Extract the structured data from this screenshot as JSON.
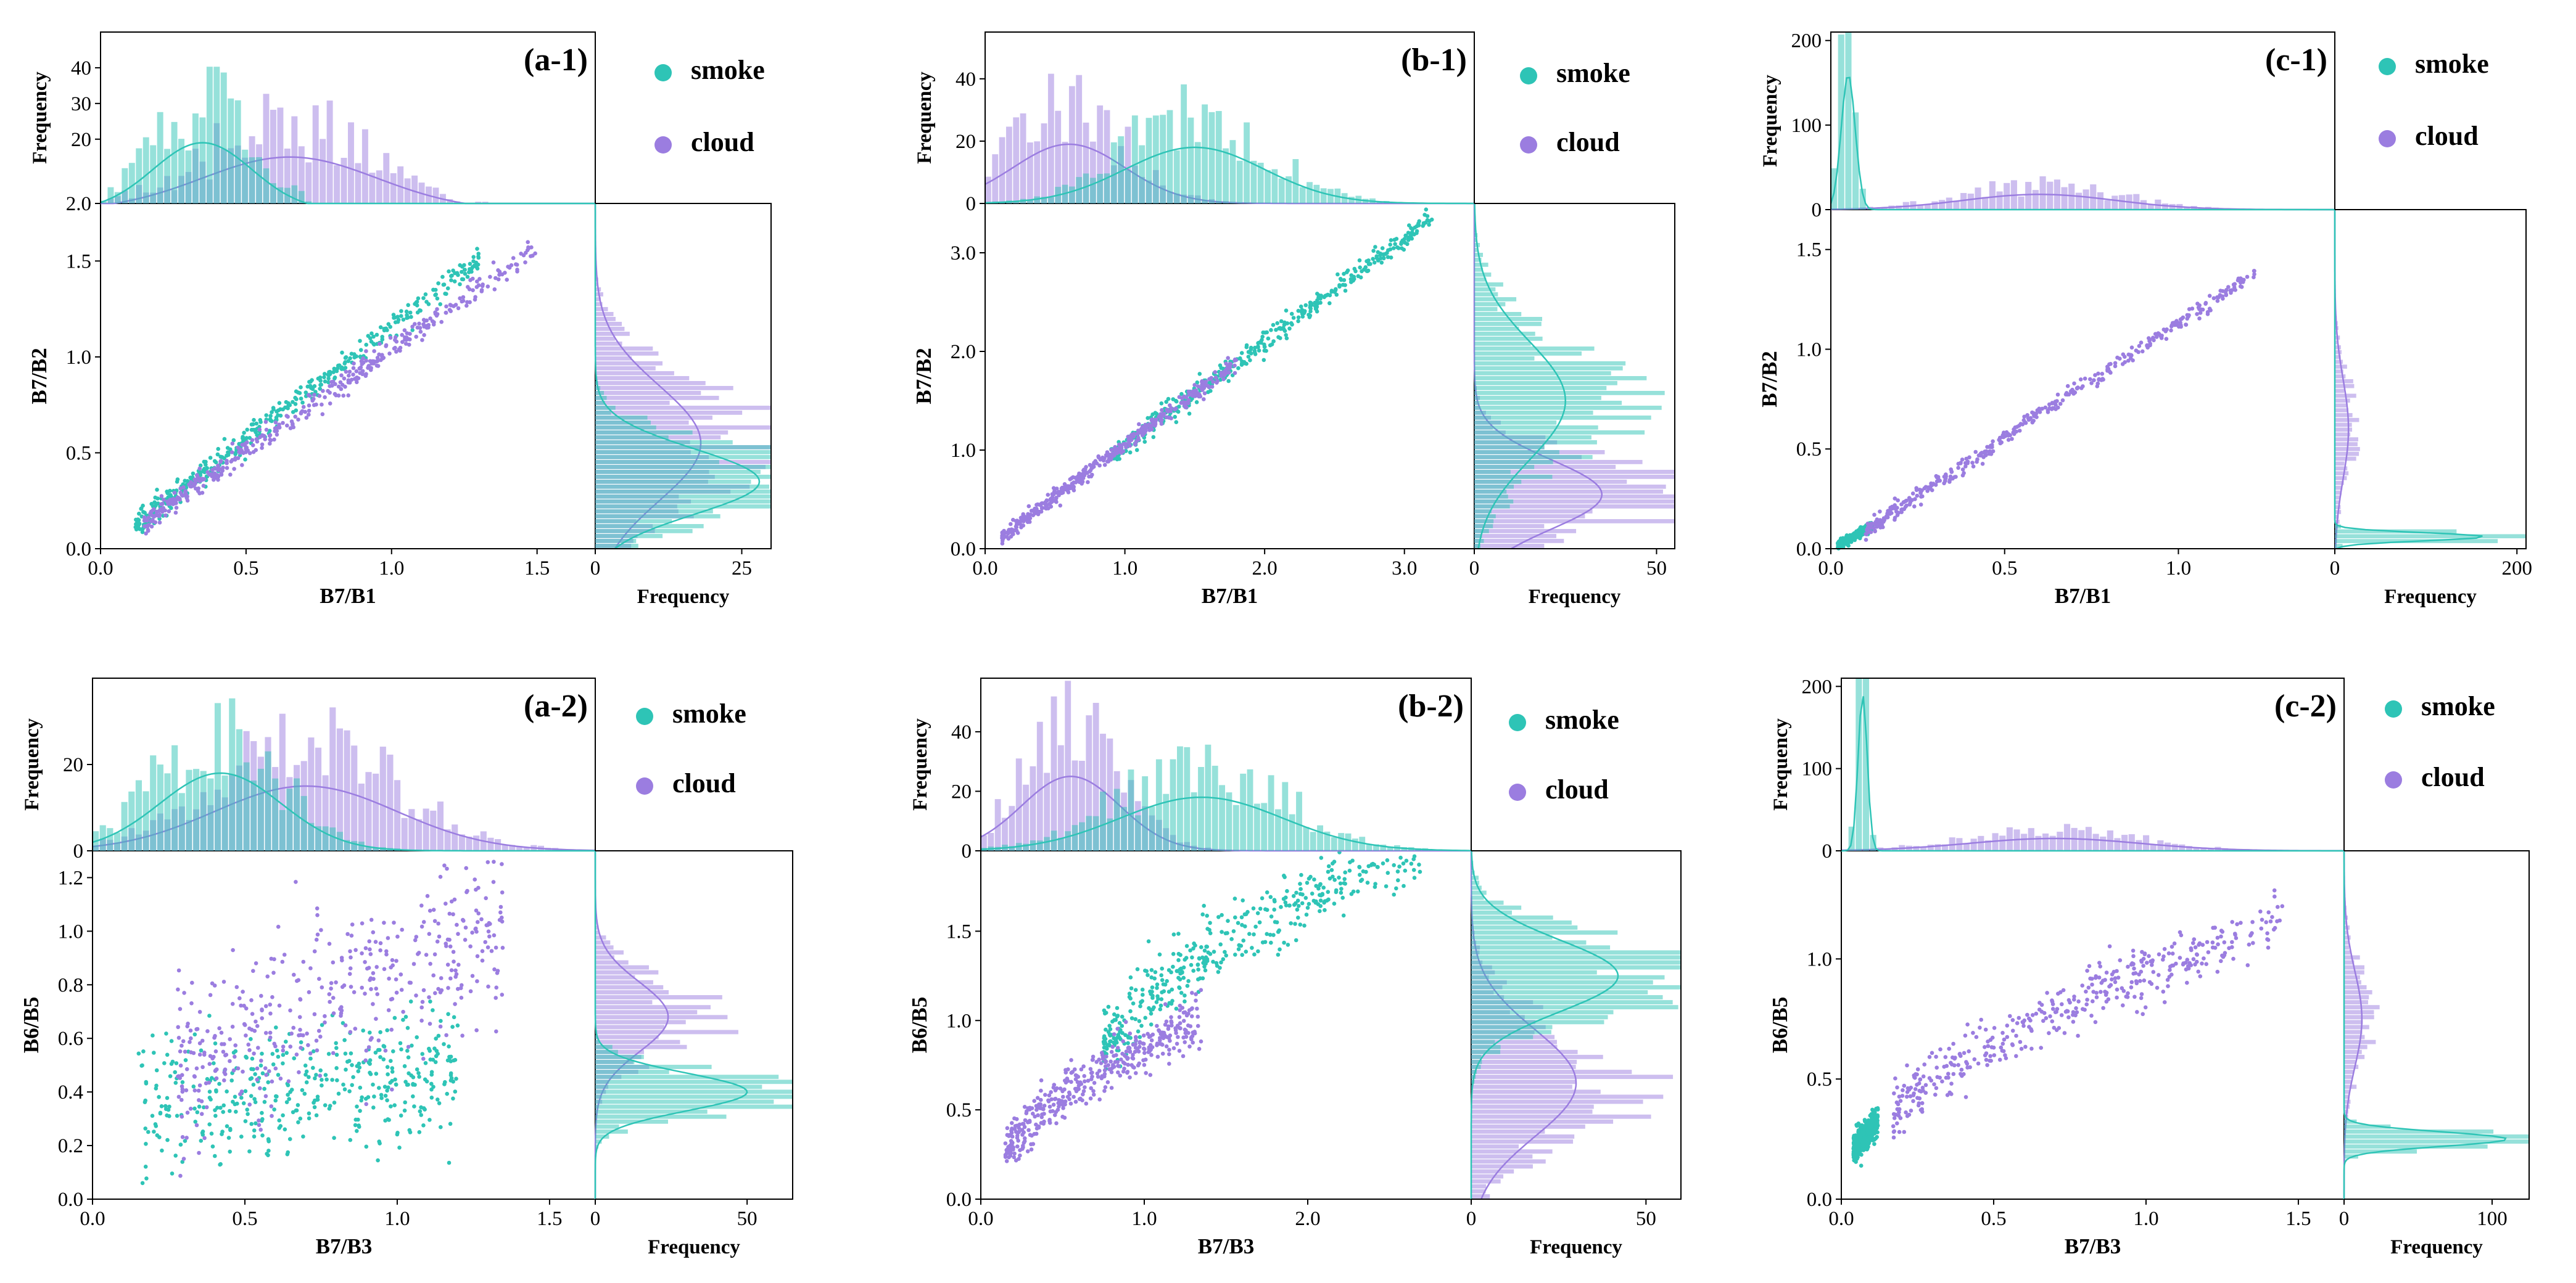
{
  "colors": {
    "smoke": "#2ec4b6",
    "cloud": "#9b7de0",
    "axis": "#000000"
  },
  "legend": {
    "smoke_label": "smoke",
    "cloud_label": "cloud"
  },
  "freq_label": "Frequency",
  "chart_data": [
    {
      "id": "a-1",
      "type": "scatter",
      "panel_label": "(a-1)",
      "xlabel": "B7/B1",
      "ylabel": "B7/B2",
      "xlim": [
        0.0,
        1.7
      ],
      "ylim": [
        0.0,
        1.8
      ],
      "xticks": [
        "0.0",
        "0.5",
        "1.0",
        "1.5"
      ],
      "yticks": [
        "0.0",
        "0.5",
        "1.0",
        "1.5"
      ],
      "top_hist": {
        "ylim": [
          2.0,
          50
        ],
        "yticks": [
          "2.0",
          "20",
          "30",
          "40"
        ],
        "smoke_mean": 0.35,
        "smoke_sd": 0.17,
        "smoke_peak": 19,
        "cloud_mean": 0.65,
        "cloud_sd": 0.3,
        "cloud_peak": 15
      },
      "right_hist": {
        "xlim": [
          0,
          30
        ],
        "xticks": [
          "0",
          "25"
        ],
        "smoke_mean": 0.35,
        "smoke_sd": 0.17,
        "smoke_peak": 28,
        "cloud_mean": 0.55,
        "cloud_sd": 0.3,
        "cloud_peak": 18
      },
      "series": [
        {
          "name": "smoke",
          "relation": "linear",
          "x_range": [
            0.12,
            1.3
          ],
          "slope": 1.18,
          "intercept": -0.02,
          "spread": 0.03
        },
        {
          "name": "cloud",
          "relation": "linear",
          "x_range": [
            0.15,
            1.5
          ],
          "slope": 1.06,
          "intercept": -0.02,
          "spread": 0.03
        }
      ]
    },
    {
      "id": "b-1",
      "type": "scatter",
      "panel_label": "(b-1)",
      "xlabel": "B7/B1",
      "ylabel": "B7/B2",
      "xlim": [
        0.0,
        3.5
      ],
      "ylim": [
        0.0,
        3.5
      ],
      "xticks": [
        "0.0",
        "1.0",
        "2.0",
        "3.0"
      ],
      "yticks": [
        "0.0",
        "1.0",
        "2.0",
        "3.0"
      ],
      "top_hist": {
        "ylim": [
          0,
          55
        ],
        "yticks": [
          "0",
          "20",
          "40"
        ],
        "smoke_mean": 1.5,
        "smoke_sd": 0.5,
        "smoke_peak": 18,
        "cloud_mean": 0.6,
        "cloud_sd": 0.4,
        "cloud_peak": 19
      },
      "right_hist": {
        "xlim": [
          0,
          55
        ],
        "xticks": [
          "0",
          "50"
        ],
        "smoke_mean": 1.5,
        "smoke_sd": 0.6,
        "smoke_peak": 25,
        "cloud_mean": 0.55,
        "cloud_sd": 0.35,
        "cloud_peak": 35
      },
      "series": [
        {
          "name": "smoke",
          "relation": "linear",
          "x_range": [
            0.9,
            3.2
          ],
          "slope": 1.05,
          "intercept": 0.0,
          "spread": 0.06
        },
        {
          "name": "cloud",
          "relation": "linear",
          "x_range": [
            0.12,
            1.8
          ],
          "slope": 1.05,
          "intercept": 0.0,
          "spread": 0.04
        }
      ]
    },
    {
      "id": "c-1",
      "type": "scatter",
      "panel_label": "(c-1)",
      "xlabel": "B7/B1",
      "ylabel": "B7/B2",
      "xlim": [
        0.0,
        1.45
      ],
      "ylim": [
        0.0,
        1.7
      ],
      "xticks": [
        "0.0",
        "0.5",
        "1.0"
      ],
      "yticks": [
        "0.0",
        "0.5",
        "1.0",
        "1.5"
      ],
      "top_hist": {
        "ylim": [
          0,
          210
        ],
        "yticks": [
          "0",
          "100",
          "200"
        ],
        "smoke_mean": 0.05,
        "smoke_sd": 0.02,
        "smoke_peak": 160,
        "cloud_mean": 0.6,
        "cloud_sd": 0.22,
        "cloud_peak": 18
      },
      "right_hist": {
        "xlim": [
          0,
          210
        ],
        "xticks": [
          "0",
          "200"
        ],
        "smoke_mean": 0.06,
        "smoke_sd": 0.02,
        "smoke_peak": 165,
        "cloud_mean": 0.6,
        "cloud_sd": 0.25,
        "cloud_peak": 15
      },
      "series": [
        {
          "name": "smoke",
          "relation": "linear",
          "x_range": [
            0.02,
            0.12
          ],
          "slope": 0.95,
          "intercept": 0.0,
          "spread": 0.01
        },
        {
          "name": "cloud",
          "relation": "linear",
          "x_range": [
            0.1,
            1.22
          ],
          "slope": 1.15,
          "intercept": -0.02,
          "spread": 0.02
        }
      ]
    },
    {
      "id": "a-2",
      "type": "scatter",
      "panel_label": "(a-2)",
      "xlabel": "B7/B3",
      "ylabel": "B6/B5",
      "xlim": [
        0.0,
        1.65
      ],
      "ylim": [
        0.0,
        1.3
      ],
      "xticks": [
        "0.0",
        "0.5",
        "1.0",
        "1.5"
      ],
      "yticks": [
        "0.0",
        "0.2",
        "0.4",
        "0.6",
        "0.8",
        "1.0",
        "1.2"
      ],
      "top_hist": {
        "ylim": [
          0,
          40
        ],
        "yticks": [
          "0",
          "20"
        ],
        "smoke_mean": 0.42,
        "smoke_sd": 0.2,
        "smoke_peak": 18,
        "cloud_mean": 0.7,
        "cloud_sd": 0.3,
        "cloud_peak": 15
      },
      "right_hist": {
        "xlim": [
          0,
          65
        ],
        "xticks": [
          "0",
          "50"
        ],
        "smoke_mean": 0.4,
        "smoke_sd": 0.07,
        "smoke_peak": 50,
        "cloud_mean": 0.68,
        "cloud_sd": 0.13,
        "cloud_peak": 24
      },
      "series": [
        {
          "name": "smoke",
          "relation": "cloud",
          "x_range": [
            0.15,
            1.2
          ],
          "y_center": 0.38,
          "y_spread": 0.12
        },
        {
          "name": "cloud",
          "relation": "sqrt",
          "x_range": [
            0.28,
            1.35
          ],
          "a": 0.85,
          "b": 0.0,
          "spread": 0.15
        }
      ]
    },
    {
      "id": "b-2",
      "type": "scatter",
      "panel_label": "(b-2)",
      "xlabel": "B7/B3",
      "ylabel": "B6/B5",
      "xlim": [
        0.0,
        3.0
      ],
      "ylim": [
        0.0,
        1.95
      ],
      "xticks": [
        "0.0",
        "1.0",
        "2.0"
      ],
      "yticks": [
        "0.0",
        "0.5",
        "1.0",
        "1.5"
      ],
      "top_hist": {
        "ylim": [
          0,
          58
        ],
        "yticks": [
          "0",
          "20",
          "40"
        ],
        "smoke_mean": 1.35,
        "smoke_sd": 0.5,
        "smoke_peak": 18,
        "cloud_mean": 0.55,
        "cloud_sd": 0.3,
        "cloud_peak": 25
      },
      "right_hist": {
        "xlim": [
          0,
          60
        ],
        "xticks": [
          "0",
          "50"
        ],
        "smoke_mean": 1.25,
        "smoke_sd": 0.2,
        "smoke_peak": 42,
        "cloud_mean": 0.65,
        "cloud_sd": 0.3,
        "cloud_peak": 30
      },
      "series": [
        {
          "name": "smoke",
          "relation": "log",
          "x_range": [
            0.75,
            2.7
          ],
          "a": 0.85,
          "b": 1.1,
          "spread": 0.1
        },
        {
          "name": "cloud",
          "relation": "sqrt",
          "x_range": [
            0.15,
            1.35
          ],
          "a": 0.95,
          "b": -0.1,
          "spread": 0.07
        }
      ]
    },
    {
      "id": "c-2",
      "type": "scatter",
      "panel_label": "(c-2)",
      "xlabel": "B7/B3",
      "ylabel": "B6/B5",
      "xlim": [
        0.0,
        1.65
      ],
      "ylim": [
        0.0,
        1.45
      ],
      "xticks": [
        "0.0",
        "0.5",
        "1.0",
        "1.5"
      ],
      "yticks": [
        "0.0",
        "0.5",
        "1.0"
      ],
      "top_hist": {
        "ylim": [
          0,
          210
        ],
        "yticks": [
          "0",
          "100",
          "200"
        ],
        "smoke_mean": 0.07,
        "smoke_sd": 0.015,
        "smoke_peak": 190,
        "cloud_mean": 0.7,
        "cloud_sd": 0.28,
        "cloud_peak": 15
      },
      "right_hist": {
        "xlim": [
          0,
          125
        ],
        "xticks": [
          "0",
          "100"
        ],
        "smoke_mean": 0.25,
        "smoke_sd": 0.03,
        "smoke_peak": 110,
        "cloud_mean": 0.75,
        "cloud_sd": 0.2,
        "cloud_peak": 12
      },
      "series": [
        {
          "name": "smoke",
          "relation": "linear",
          "x_range": [
            0.04,
            0.12
          ],
          "slope": 1.5,
          "intercept": 0.15,
          "spread": 0.03
        },
        {
          "name": "cloud",
          "relation": "sqrt",
          "x_range": [
            0.17,
            1.45
          ],
          "a": 1.0,
          "b": -0.05,
          "spread": 0.06
        }
      ]
    }
  ]
}
